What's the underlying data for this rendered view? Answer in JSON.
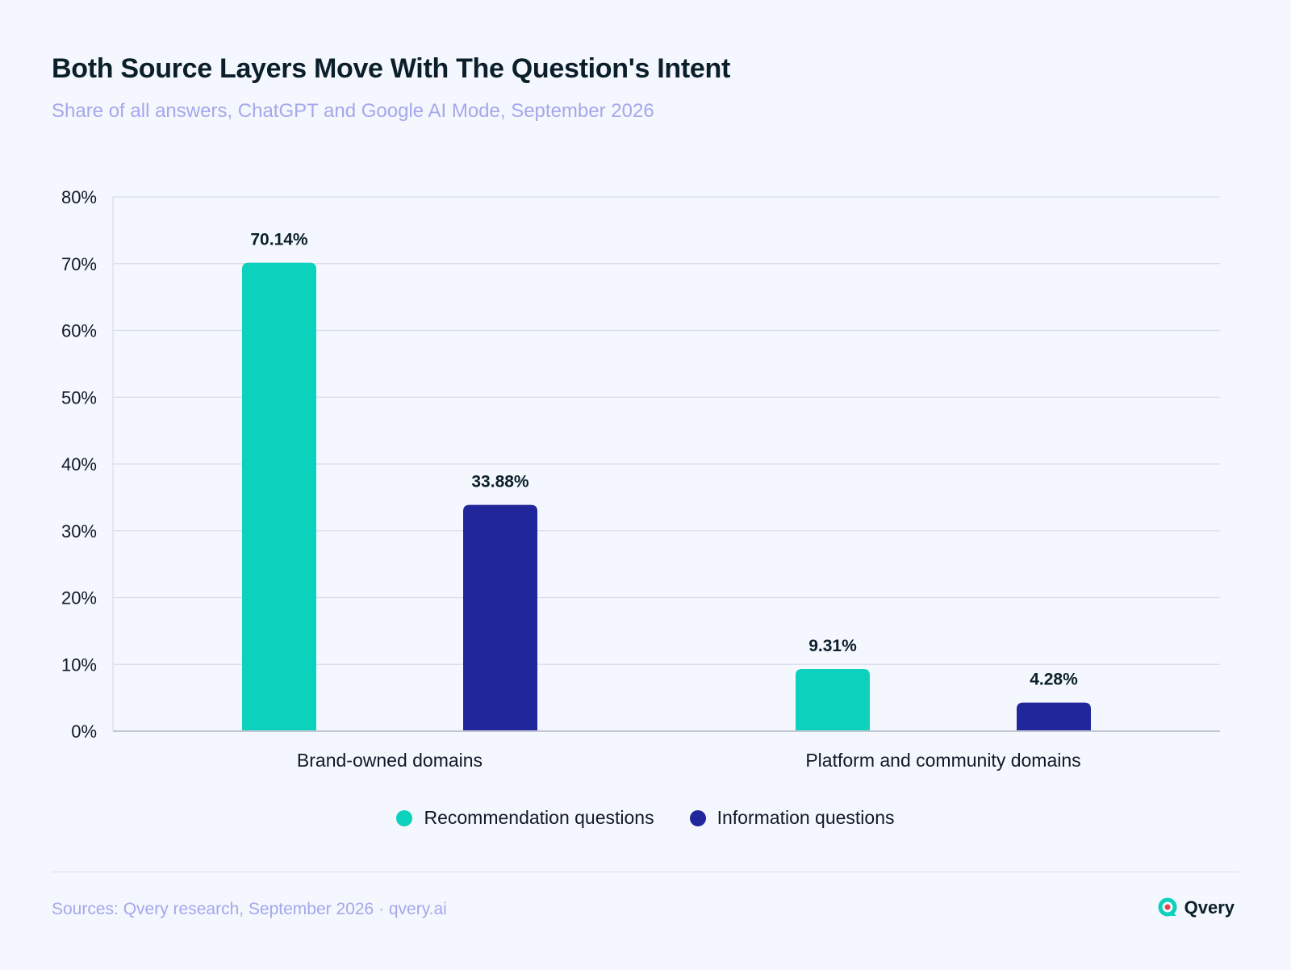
{
  "header": {
    "title": "Both Source Layers Move With The Question's Intent",
    "subtitle": "Share of all answers, ChatGPT and Google AI Mode, September 2026"
  },
  "chart_data": {
    "type": "bar",
    "title": "Both Source Layers Move With The Question's Intent",
    "subtitle": "Share of all answers, ChatGPT and Google AI Mode, September 2026",
    "categories": [
      "Brand-owned domains",
      "Platform and community domains"
    ],
    "series": [
      {
        "name": "Recommendation questions",
        "values": [
          70.14,
          9.31
        ],
        "color": "#0CD1BD"
      },
      {
        "name": "Information questions",
        "values": [
          33.88,
          4.28
        ],
        "color": "#21279A"
      }
    ],
    "value_labels": [
      [
        "70.14%",
        "9.31%"
      ],
      [
        "33.88%",
        "4.28%"
      ]
    ],
    "ylim": [
      0,
      80
    ],
    "yticks": [
      0,
      10,
      20,
      30,
      40,
      50,
      60,
      70,
      80
    ],
    "ytick_labels": [
      "0%",
      "10%",
      "20%",
      "30%",
      "40%",
      "50%",
      "60%",
      "70%",
      "80%"
    ],
    "xlabel": "",
    "ylabel": "",
    "grid": true,
    "legend_position": "bottom-center"
  },
  "footer": {
    "source": "Sources: Qvery research, September 2026 · qvery.ai",
    "brand_name": "Qvery"
  },
  "colors": {
    "background": "#F4F7FD",
    "grid": "#D8DDEA",
    "axis": "#C3C7D4",
    "brand_icon": "#0CD1BD",
    "brand_icon_dot": "#E8414D"
  },
  "icons": {
    "brand_logo": "qvery-logo-icon"
  }
}
